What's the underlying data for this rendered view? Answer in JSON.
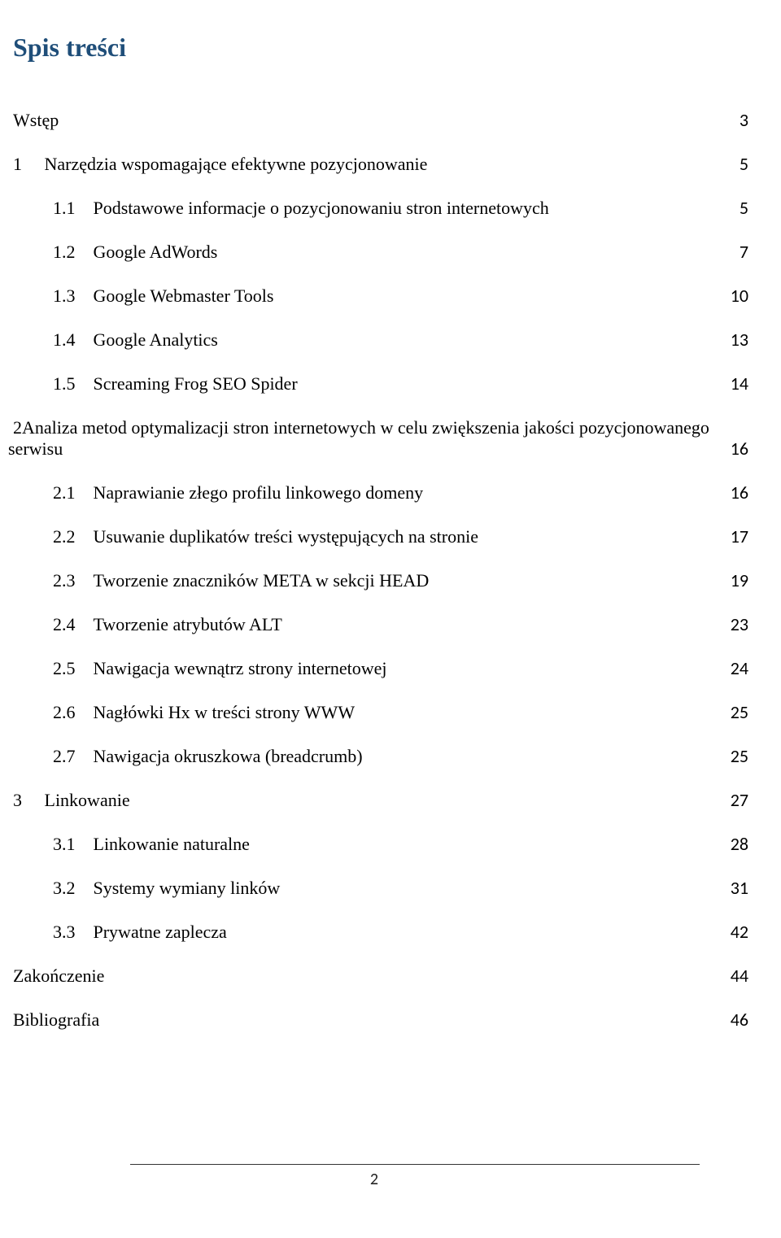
{
  "title": {
    "text": "Spis treści",
    "color": "#1f4e79"
  },
  "entries": [
    {
      "num": "",
      "label": "Wstęp",
      "page": "3",
      "indent": 0
    },
    {
      "num": "1",
      "label": "Narzędzia wspomagające efektywne pozycjonowanie",
      "page": "5",
      "indent": 1
    },
    {
      "num": "1.1",
      "label": "Podstawowe informacje o pozycjonowaniu stron internetowych",
      "page": "5",
      "indent": 2
    },
    {
      "num": "1.2",
      "label": "Google AdWords",
      "page": "7",
      "indent": 2
    },
    {
      "num": "1.3",
      "label": "Google Webmaster Tools",
      "page": "10",
      "indent": 2
    },
    {
      "num": "1.4",
      "label": "Google Analytics",
      "page": "13",
      "indent": 2
    },
    {
      "num": "1.5",
      "label": "Screaming Frog SEO Spider",
      "page": "14",
      "indent": 2
    },
    {
      "num": "2",
      "label": "Analiza metod optymalizacji stron internetowych w celu zwiększenia jakości pozycjonowanego",
      "label2": "serwisu",
      "page": "16",
      "indent": 1,
      "wrap": true
    },
    {
      "num": "2.1",
      "label": "Naprawianie złego profilu linkowego domeny",
      "page": "16",
      "indent": 2
    },
    {
      "num": "2.2",
      "label": "Usuwanie duplikatów treści występujących na stronie",
      "page": "17",
      "indent": 2
    },
    {
      "num": "2.3",
      "label": "Tworzenie znaczników META w sekcji HEAD",
      "page": "19",
      "indent": 2
    },
    {
      "num": "2.4",
      "label": "Tworzenie atrybutów ALT",
      "page": "23",
      "indent": 2
    },
    {
      "num": "2.5",
      "label": "Nawigacja wewnątrz strony internetowej",
      "page": "24",
      "indent": 2
    },
    {
      "num": "2.6",
      "label": "Nagłówki Hx w treści strony WWW",
      "page": "25",
      "indent": 2
    },
    {
      "num": "2.7",
      "label": "Nawigacja okruszkowa (breadcrumb)",
      "page": "25",
      "indent": 2
    },
    {
      "num": "3",
      "label": "Linkowanie",
      "page": "27",
      "indent": 1
    },
    {
      "num": "3.1",
      "label": "Linkowanie naturalne",
      "page": "28",
      "indent": 2
    },
    {
      "num": "3.2",
      "label": "Systemy wymiany linków",
      "page": "31",
      "indent": 2
    },
    {
      "num": "3.3",
      "label": "Prywatne zaplecza",
      "page": "42",
      "indent": 2
    },
    {
      "num": "",
      "label": "Zakończenie",
      "page": "44",
      "indent": 0
    },
    {
      "num": "",
      "label": "Bibliografia",
      "page": "46",
      "indent": 0
    }
  ],
  "footer_page": "2",
  "colors": {
    "text": "#000000",
    "title": "#1f4e79",
    "footer_line": "#333333"
  },
  "fonts": {
    "body": "Times New Roman",
    "numbers": "Calibri"
  }
}
